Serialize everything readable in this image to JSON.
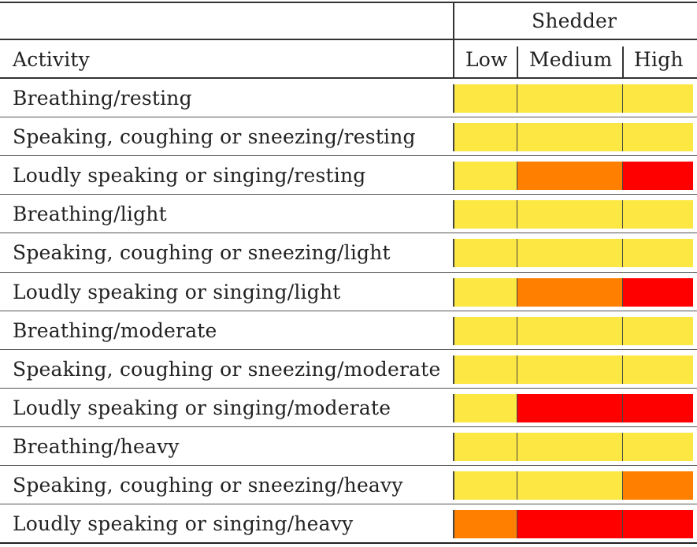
{
  "header": {
    "group_label": "Shedder",
    "activity_label": "Activity",
    "columns": [
      "Low",
      "Medium",
      "High"
    ]
  },
  "legend_colors": {
    "low": "#fde843",
    "medium": "#ff8000",
    "high": "#ff0000"
  },
  "rows": [
    {
      "activity": "Breathing/resting",
      "risk": [
        "low",
        "low",
        "low"
      ]
    },
    {
      "activity": "Speaking, coughing or sneezing/resting",
      "risk": [
        "low",
        "low",
        "low"
      ]
    },
    {
      "activity": "Loudly speaking or singing/resting",
      "risk": [
        "low",
        "medium",
        "high"
      ]
    },
    {
      "activity": "Breathing/light",
      "risk": [
        "low",
        "low",
        "low"
      ]
    },
    {
      "activity": "Speaking, coughing or sneezing/light",
      "risk": [
        "low",
        "low",
        "low"
      ]
    },
    {
      "activity": "Loudly speaking or singing/light",
      "risk": [
        "low",
        "medium",
        "high"
      ]
    },
    {
      "activity": "Breathing/moderate",
      "risk": [
        "low",
        "low",
        "low"
      ]
    },
    {
      "activity": "Speaking, coughing or sneezing/moderate",
      "risk": [
        "low",
        "low",
        "low"
      ]
    },
    {
      "activity": "Loudly speaking or singing/moderate",
      "risk": [
        "low",
        "high",
        "high"
      ]
    },
    {
      "activity": "Breathing/heavy",
      "risk": [
        "low",
        "low",
        "low"
      ]
    },
    {
      "activity": "Speaking, coughing or sneezing/heavy",
      "risk": [
        "low",
        "low",
        "medium"
      ]
    },
    {
      "activity": "Loudly speaking or singing/heavy",
      "risk": [
        "medium",
        "high",
        "high"
      ]
    }
  ]
}
